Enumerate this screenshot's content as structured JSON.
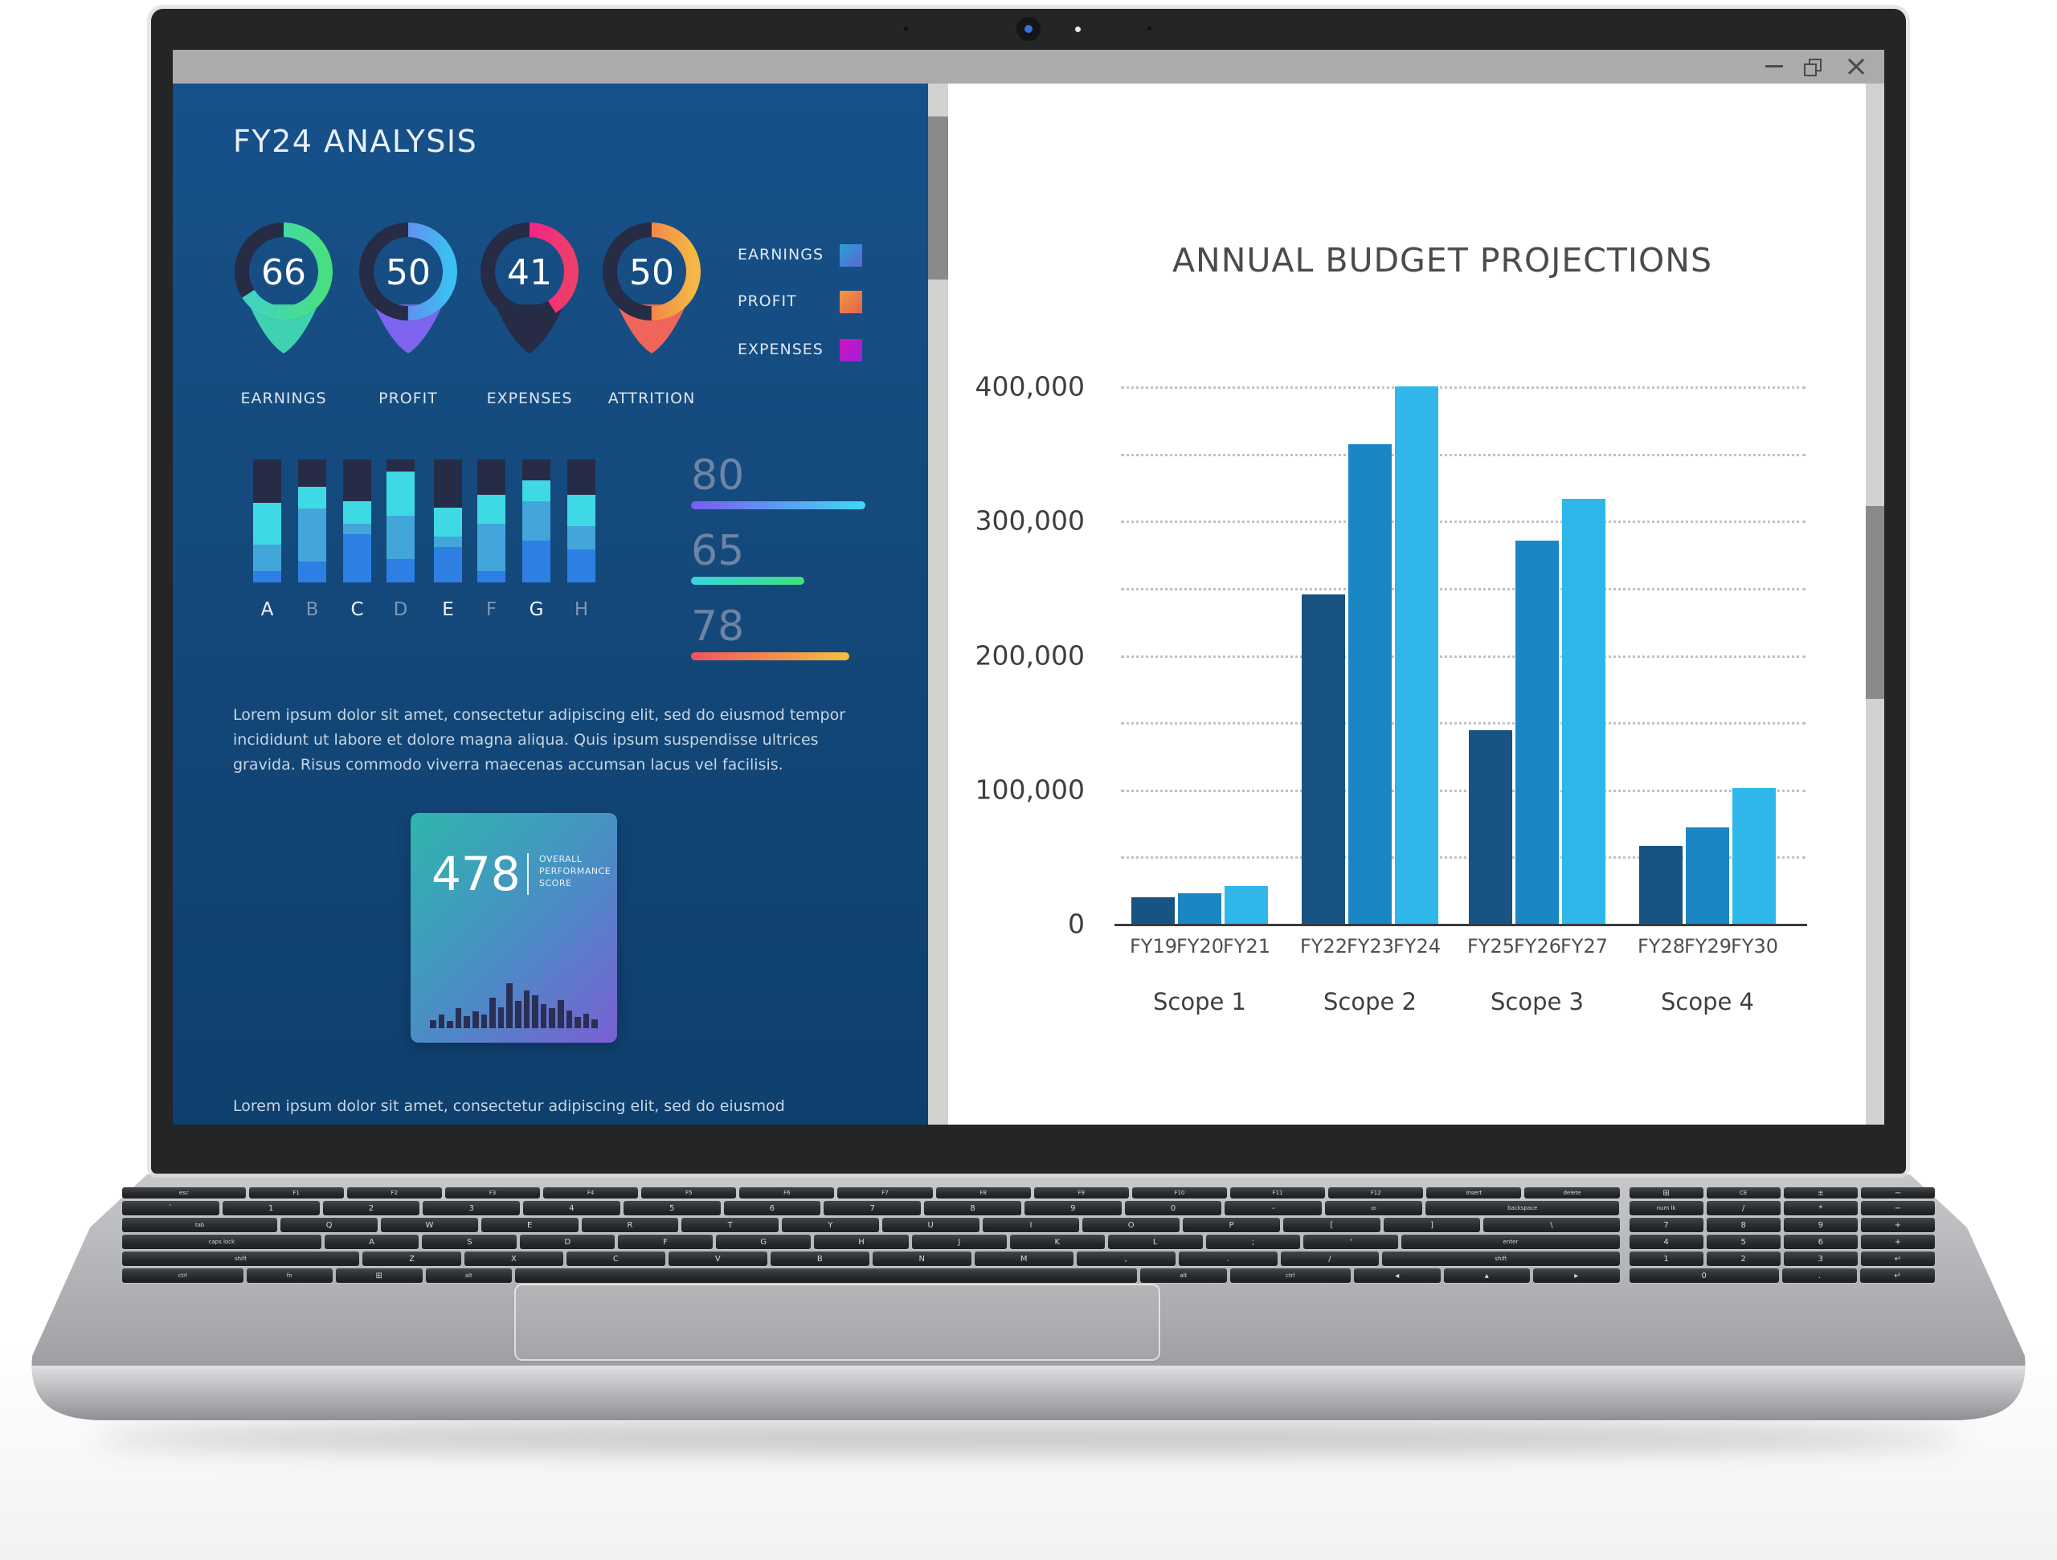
{
  "left_panel": {
    "title": "FY24 ANALYSIS",
    "legend": [
      {
        "label": "EARNINGS",
        "gradient": [
          "#2a9fd0",
          "#5a67d8"
        ]
      },
      {
        "label": "PROFIT",
        "gradient": [
          "#f19a40",
          "#e2604e"
        ]
      },
      {
        "label": "EXPENSES",
        "gradient": [
          "#d013be",
          "#9b21d8"
        ]
      }
    ],
    "paragraph_1": "Lorem ipsum dolor sit amet, consectetur adipiscing elit, sed do eiusmod tempor incididunt ut labore et dolore magna aliqua. Quis ipsum suspendisse ultrices gravida. Risus commodo viverra maecenas accumsan lacus vel facilisis.",
    "card": {
      "score": "478",
      "caption_lines": [
        "OVERALL",
        "PERFORMANCE",
        "SCORE"
      ]
    },
    "paragraph_2": "Lorem ipsum dolor sit amet, consectetur adipiscing elit, sed do eiusmod incididunt ut labore et dolore magna aliqua. Quis ipsum suspendisse ultrices gravida."
  },
  "chart_data": [
    {
      "id": "annual-budget-projections",
      "type": "bar",
      "title": "ANNUAL BUDGET PROJECTIONS",
      "categories": [
        "FY19",
        "FY20",
        "FY21",
        "FY22",
        "FY23",
        "FY24",
        "FY25",
        "FY26",
        "FY27",
        "FY28",
        "FY29",
        "FY30"
      ],
      "groups": [
        "Scope 1",
        "Scope 2",
        "Scope 3",
        "Scope 4"
      ],
      "values": [
        20000,
        23000,
        28000,
        245000,
        357000,
        400000,
        144000,
        285000,
        316000,
        58000,
        72000,
        101000
      ],
      "bar_colors_cycle": [
        "#185381",
        "#1a86c3",
        "#2fb7e9"
      ],
      "ylim": [
        0,
        400000
      ],
      "yticks": [
        0,
        100000,
        200000,
        300000,
        400000
      ],
      "ytick_labels": [
        "0",
        "100,000",
        "200,000",
        "300,000",
        "400,000"
      ],
      "gridline_step": 50000,
      "grid": "dotted-horizontal",
      "legend_position": "none"
    },
    {
      "id": "kpi-gauges",
      "type": "donut-gauge",
      "items": [
        {
          "label": "EARNINGS",
          "value": 66,
          "gradient": [
            "#3fd4c8",
            "#49df7f"
          ],
          "tail_color": "#40d2b0"
        },
        {
          "label": "PROFIT",
          "value": 50,
          "gradient": [
            "#8a5ef2",
            "#3bc1f0"
          ],
          "tail_color": "#7e64ee"
        },
        {
          "label": "EXPENSES",
          "value": 41,
          "gradient": [
            "#f20da5",
            "#ef3f68"
          ],
          "tail_color": "#262b46"
        },
        {
          "label": "ATTRITION",
          "value": 50,
          "gradient": [
            "#f0564f",
            "#f5b844"
          ],
          "tail_color": "#f0655a"
        }
      ],
      "track_color": "#262b46"
    },
    {
      "id": "kpi-stacked-bars",
      "type": "stacked-bar",
      "categories": [
        "A",
        "B",
        "C",
        "D",
        "E",
        "F",
        "G",
        "H"
      ],
      "unit": "percent-of-bar-height",
      "series": [
        {
          "name": "bottom",
          "color": "#2d7fe4",
          "values": [
            9,
            17,
            39,
            19,
            29,
            9,
            34,
            27
          ]
        },
        {
          "name": "middle",
          "color": "#43a6db",
          "values": [
            22,
            43,
            9,
            35,
            8,
            39,
            32,
            19
          ]
        },
        {
          "name": "top",
          "color": "#3fd9e6",
          "values": [
            34,
            18,
            18,
            36,
            24,
            23,
            17,
            25
          ]
        }
      ],
      "remainder_color": "#262b46",
      "bright_label_color": "#f2f6fa",
      "muted_label_color": "#7f97b5"
    },
    {
      "id": "progress-lines",
      "type": "progress",
      "items": [
        {
          "value": 80,
          "length_pct": 100,
          "gradient": [
            "#7b5cf0",
            "#3fd9f2"
          ]
        },
        {
          "value": 65,
          "length_pct": 65,
          "gradient": [
            "#38d3de",
            "#3ee07c"
          ]
        },
        {
          "value": 78,
          "length_pct": 91,
          "gradient": [
            "#f2545e",
            "#f5c03e"
          ]
        }
      ]
    },
    {
      "id": "card-mini-bars",
      "type": "bar",
      "values": [
        10,
        17,
        9,
        25,
        15,
        21,
        17,
        38,
        26,
        56,
        34,
        47,
        41,
        30,
        25,
        35,
        22,
        14,
        18,
        11
      ],
      "color": "#2a2f55"
    }
  ],
  "keyboard": {
    "main_rows": [
      [
        "esc",
        "F1",
        "F2",
        "F3",
        "F4",
        "F5",
        "F6",
        "F7",
        "F8",
        "F9",
        "F10",
        "F11",
        "F12",
        "insert",
        "delete"
      ],
      [
        "`",
        "1",
        "2",
        "3",
        "4",
        "5",
        "6",
        "7",
        "8",
        "9",
        "0",
        "-",
        "=",
        "backspace"
      ],
      [
        "tab",
        "Q",
        "W",
        "E",
        "R",
        "T",
        "Y",
        "U",
        "I",
        "O",
        "P",
        "[",
        "]",
        "\\"
      ],
      [
        "caps lock",
        "A",
        "S",
        "D",
        "F",
        "G",
        "H",
        "J",
        "K",
        "L",
        ";",
        "'",
        "enter"
      ],
      [
        "shift",
        "Z",
        "X",
        "C",
        "V",
        "B",
        "N",
        "M",
        ",",
        ".",
        "/",
        "shift"
      ],
      [
        "ctrl",
        "fn",
        "⊞",
        "alt",
        " ",
        "alt",
        "ctrl",
        "◂",
        "▴",
        "▸"
      ]
    ],
    "numpad_rows": [
      [
        "⊞",
        "CE",
        "±",
        "−"
      ],
      [
        "num lk",
        "/",
        "*",
        "−"
      ],
      [
        "7",
        "8",
        "9",
        "+"
      ],
      [
        "4",
        "5",
        "6",
        "+"
      ],
      [
        "1",
        "2",
        "3",
        "↵"
      ],
      [
        "0",
        ".",
        "↵"
      ]
    ]
  }
}
